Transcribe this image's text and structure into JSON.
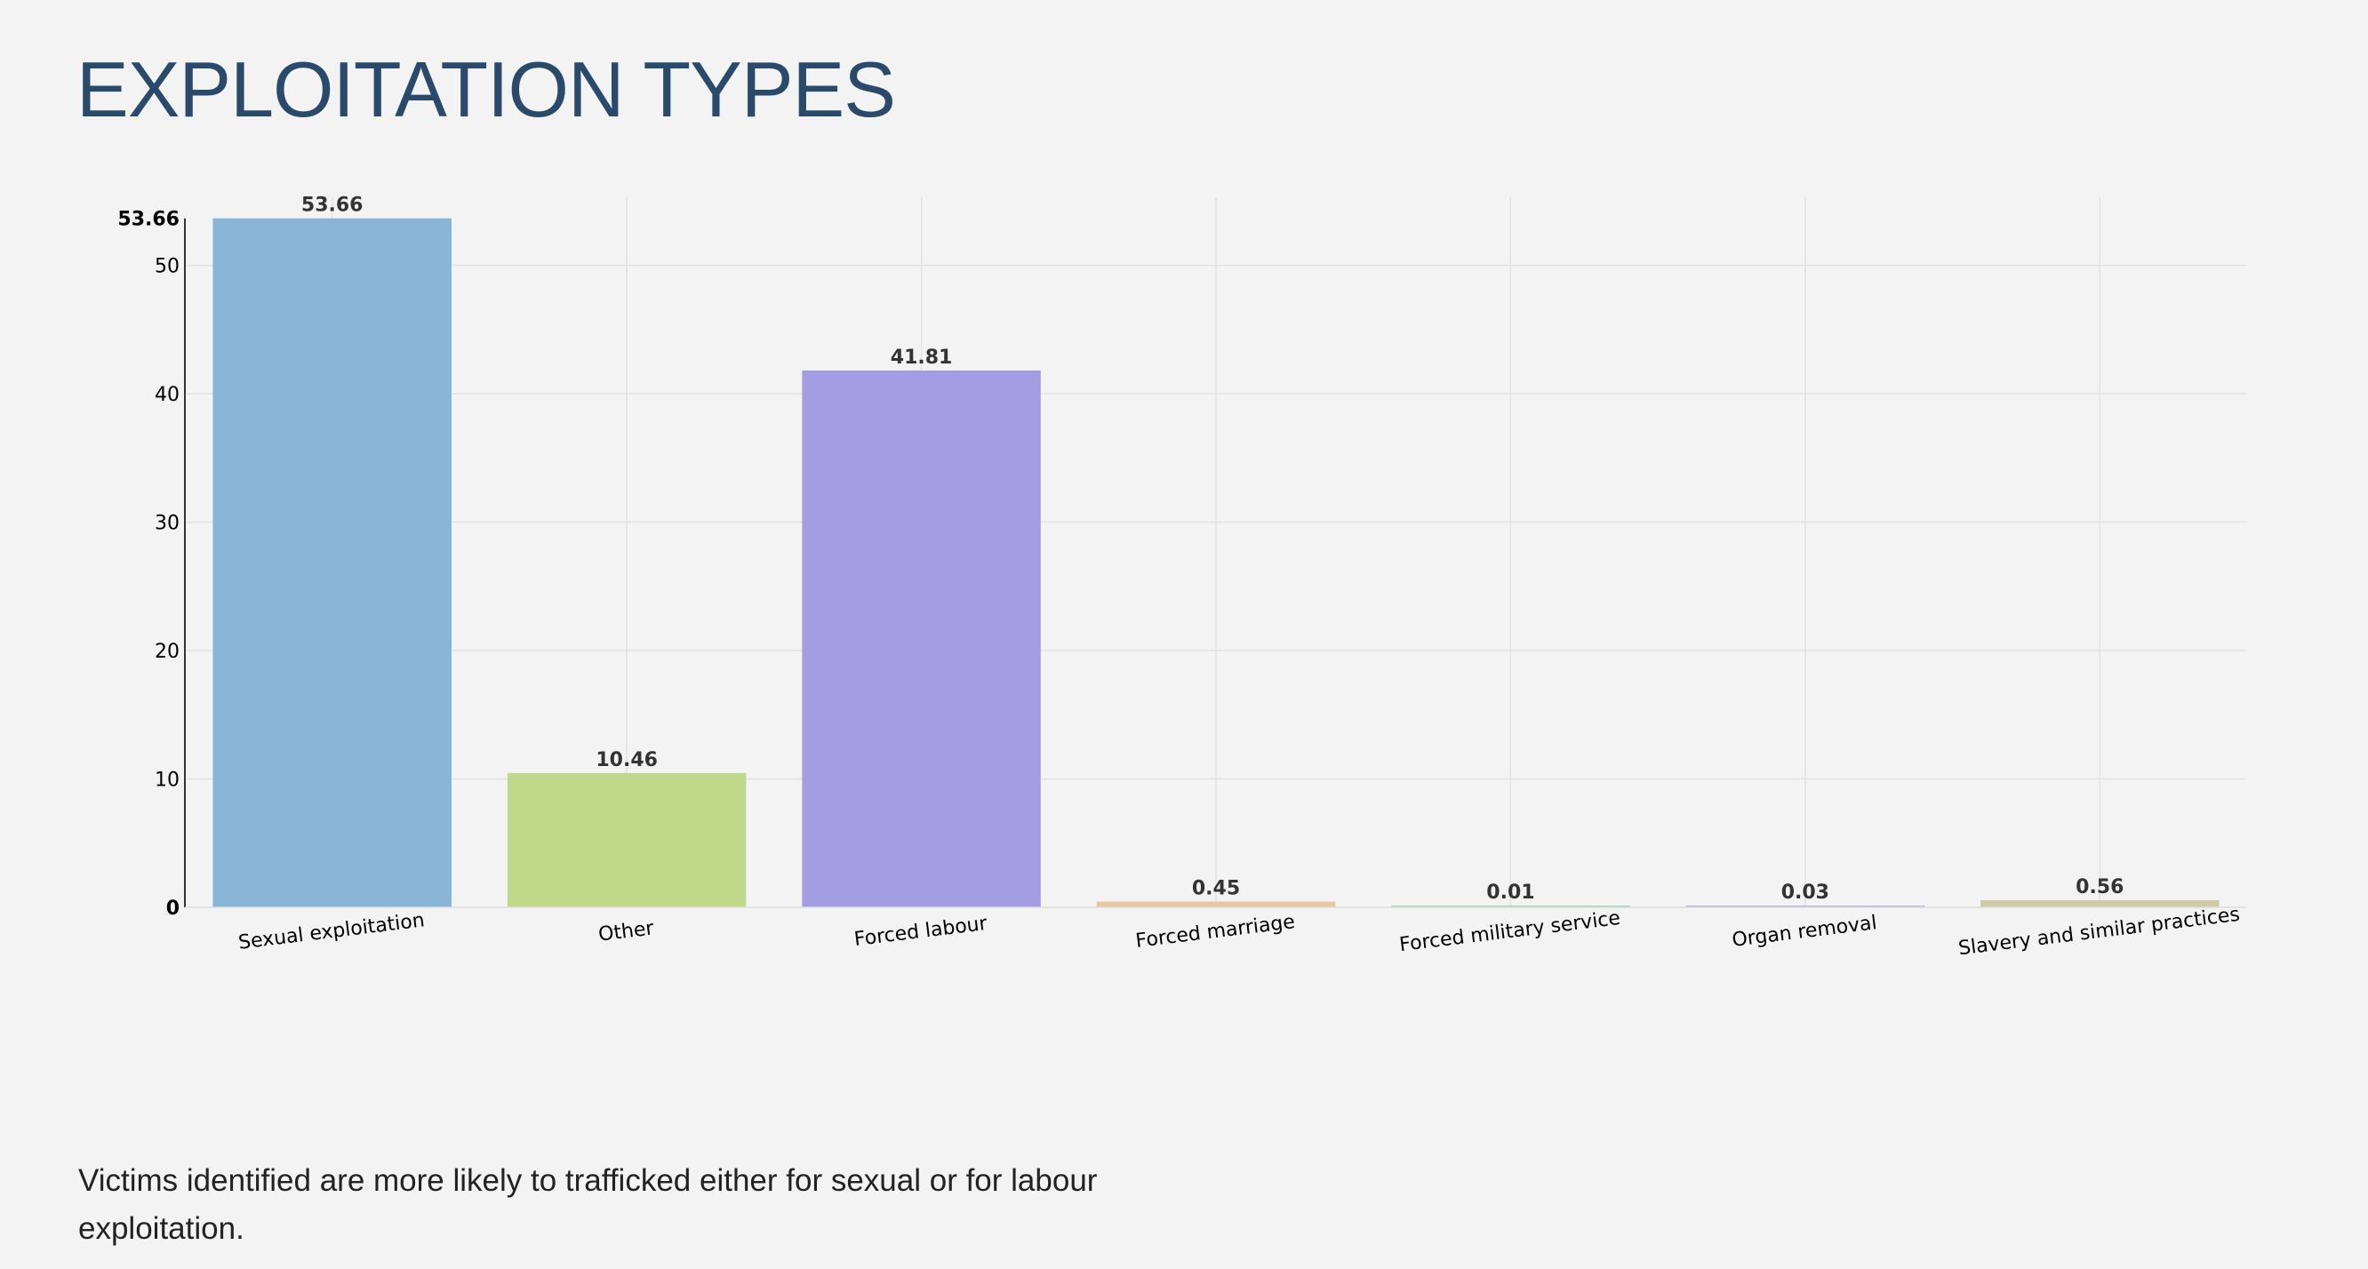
{
  "page": {
    "title": "EXPLOITATION TYPES",
    "caption": "Victims identified are more likely to trafficked either for sexual or for labour exploitation."
  },
  "chart_data": {
    "type": "bar",
    "categories": [
      "Sexual exploitation",
      "Other",
      "Forced labour",
      "Forced marriage",
      "Forced military service",
      "Organ removal",
      "Slavery and similar practices"
    ],
    "values": [
      53.66,
      10.46,
      41.81,
      0.45,
      0.01,
      0.03,
      0.56
    ],
    "value_labels": [
      "53.66",
      "10.46",
      "41.81",
      "0.45",
      "0.01",
      "0.03",
      "0.56"
    ],
    "colors": [
      "#88b5d6",
      "#bfd88a",
      "#a59de3",
      "#e6c8a0",
      "#9fd6b8",
      "#b8b6e0",
      "#cfcbaa"
    ],
    "ylim": [
      0,
      55.3
    ],
    "yticks": [
      0,
      10,
      20,
      30,
      40,
      50
    ],
    "ymax_label": "53.66",
    "ymax_value": 53.66,
    "grid": true,
    "xlabel": "",
    "ylabel": ""
  }
}
